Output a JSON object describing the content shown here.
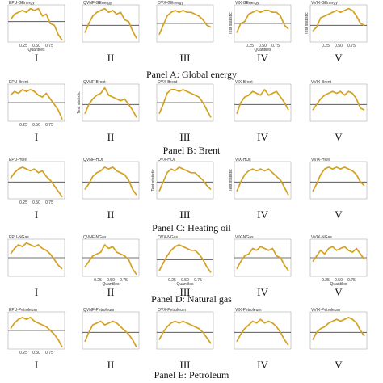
{
  "figure": {
    "curve_color": "#d4a020",
    "threshold_color": "#444444",
    "columns": [
      "I",
      "II",
      "III",
      "IV",
      "V"
    ]
  },
  "chart_data": [
    {
      "type": "line",
      "panel_caption": "Panel A: Global energy",
      "subplots": [
        {
          "title": "EPU-GEnergy",
          "x_ticks": [
            "0.25",
            "0.50",
            "0.75"
          ],
          "xlabel": "Quantiles",
          "ylabel": "",
          "threshold": 0.55,
          "y": [
            0.6,
            0.75,
            0.8,
            0.85,
            0.8,
            0.9,
            0.85,
            0.9,
            0.7,
            0.75,
            0.5,
            0.45,
            0.2,
            0.05
          ]
        },
        {
          "title": "QVNF-GEnergy",
          "x_ticks": [],
          "xlabel": "",
          "ylabel": "",
          "threshold": 0.45,
          "y": [
            0.25,
            0.5,
            0.7,
            0.8,
            0.85,
            0.9,
            0.8,
            0.85,
            0.75,
            0.8,
            0.6,
            0.55,
            0.3,
            0.1
          ]
        },
        {
          "title": "OVX-GEnergy",
          "x_ticks": [],
          "xlabel": "",
          "ylabel": "",
          "threshold": 0.5,
          "y": [
            0.2,
            0.45,
            0.7,
            0.8,
            0.85,
            0.8,
            0.85,
            0.8,
            0.8,
            0.75,
            0.7,
            0.6,
            0.45,
            0.4
          ]
        },
        {
          "title": "VIX-GEnergy",
          "x_ticks": [
            "0.25",
            "0.50",
            "0.75"
          ],
          "xlabel": "Quantiles",
          "ylabel": "Test statistic",
          "threshold": 0.5,
          "y": [
            0.25,
            0.5,
            0.55,
            0.75,
            0.8,
            0.85,
            0.8,
            0.85,
            0.85,
            0.8,
            0.8,
            0.7,
            0.45,
            0.35
          ]
        },
        {
          "title": "VVIX-GEnergy",
          "x_ticks": [
            "0.25",
            "0.50",
            "0.75"
          ],
          "xlabel": "",
          "ylabel": "Test statistic",
          "threshold": 0.45,
          "y": [
            0.3,
            0.4,
            0.65,
            0.7,
            0.75,
            0.8,
            0.85,
            0.8,
            0.85,
            0.9,
            0.85,
            0.7,
            0.5,
            0.45
          ]
        }
      ]
    },
    {
      "type": "line",
      "panel_caption": "Panel B: Brent",
      "subplots": [
        {
          "title": "EPU-Brent",
          "x_ticks": [
            "0.25",
            "0.50",
            "0.75"
          ],
          "xlabel": "",
          "ylabel": "",
          "threshold": 0.5,
          "y": [
            0.7,
            0.8,
            0.75,
            0.85,
            0.8,
            0.85,
            0.8,
            0.7,
            0.65,
            0.75,
            0.6,
            0.45,
            0.3,
            0.05
          ]
        },
        {
          "title": "QVNF-Brent",
          "x_ticks": [],
          "xlabel": "",
          "ylabel": "Test statistic",
          "threshold": 0.45,
          "y": [
            0.2,
            0.45,
            0.6,
            0.7,
            0.75,
            0.9,
            0.7,
            0.65,
            0.6,
            0.55,
            0.6,
            0.45,
            0.3,
            0.1
          ]
        },
        {
          "title": "OVX-Brent",
          "x_ticks": [],
          "xlabel": "",
          "ylabel": "",
          "threshold": 0.5,
          "y": [
            0.2,
            0.45,
            0.75,
            0.85,
            0.85,
            0.8,
            0.85,
            0.8,
            0.75,
            0.7,
            0.65,
            0.5,
            0.3,
            0.1
          ]
        },
        {
          "title": "VIX-Brent",
          "x_ticks": [],
          "xlabel": "",
          "ylabel": "",
          "threshold": 0.45,
          "y": [
            0.2,
            0.5,
            0.65,
            0.7,
            0.8,
            0.75,
            0.7,
            0.85,
            0.7,
            0.75,
            0.8,
            0.65,
            0.5,
            0.3
          ]
        },
        {
          "title": "VVIX-Brent",
          "x_ticks": [],
          "xlabel": "",
          "ylabel": "",
          "threshold": 0.45,
          "y": [
            0.3,
            0.45,
            0.6,
            0.7,
            0.75,
            0.8,
            0.75,
            0.8,
            0.7,
            0.8,
            0.75,
            0.6,
            0.35,
            0.3
          ]
        }
      ]
    },
    {
      "type": "line",
      "panel_caption": "Panel C: Heating oil",
      "subplots": [
        {
          "title": "EPU-HOil",
          "x_ticks": [
            "0.25",
            "0.50",
            "0.75"
          ],
          "xlabel": "",
          "ylabel": "",
          "threshold": 0.45,
          "y": [
            0.55,
            0.7,
            0.8,
            0.85,
            0.8,
            0.75,
            0.8,
            0.7,
            0.75,
            0.6,
            0.5,
            0.35,
            0.2,
            0.05
          ]
        },
        {
          "title": "QVNF-HOil",
          "x_ticks": [],
          "xlabel": "",
          "ylabel": "",
          "threshold": 0.45,
          "y": [
            0.25,
            0.4,
            0.6,
            0.7,
            0.75,
            0.85,
            0.8,
            0.85,
            0.75,
            0.7,
            0.65,
            0.5,
            0.25,
            0.1
          ]
        },
        {
          "title": "OVX-HOil",
          "x_ticks": [],
          "xlabel": "",
          "ylabel": "Test statistic",
          "threshold": 0.45,
          "y": [
            0.2,
            0.45,
            0.7,
            0.8,
            0.75,
            0.85,
            0.8,
            0.75,
            0.7,
            0.7,
            0.6,
            0.5,
            0.35,
            0.25
          ]
        },
        {
          "title": "VIX-HOil",
          "x_ticks": [],
          "xlabel": "",
          "ylabel": "Test statistic",
          "threshold": 0.45,
          "y": [
            0.2,
            0.45,
            0.65,
            0.75,
            0.8,
            0.75,
            0.8,
            0.75,
            0.8,
            0.7,
            0.6,
            0.5,
            0.3,
            0.1
          ]
        },
        {
          "title": "VVIX-HOil",
          "x_ticks": [],
          "xlabel": "",
          "ylabel": "",
          "threshold": 0.45,
          "y": [
            0.2,
            0.4,
            0.65,
            0.8,
            0.85,
            0.8,
            0.85,
            0.8,
            0.85,
            0.8,
            0.75,
            0.65,
            0.45,
            0.35
          ]
        }
      ]
    },
    {
      "type": "line",
      "panel_caption": "Panel D: Natural gas",
      "subplots": [
        {
          "title": "EPU-NGas",
          "x_ticks": [],
          "xlabel": "",
          "ylabel": "",
          "threshold": 0.5,
          "y": [
            0.6,
            0.75,
            0.85,
            0.8,
            0.9,
            0.85,
            0.8,
            0.85,
            0.75,
            0.7,
            0.6,
            0.45,
            0.3,
            0.2
          ]
        },
        {
          "title": "QVNF-NGas",
          "x_ticks": [
            "0.25",
            "0.50",
            "0.75"
          ],
          "xlabel": "Quantiles",
          "ylabel": "",
          "threshold": 0.5,
          "y": [
            0.25,
            0.4,
            0.55,
            0.6,
            0.65,
            0.85,
            0.75,
            0.8,
            0.65,
            0.6,
            0.55,
            0.45,
            0.2,
            0.05
          ]
        },
        {
          "title": "OVX-NGas",
          "x_ticks": [
            "0.25",
            "0.50",
            "0.75"
          ],
          "xlabel": "Quantiles",
          "ylabel": "",
          "threshold": 0.45,
          "y": [
            0.15,
            0.35,
            0.55,
            0.7,
            0.8,
            0.85,
            0.8,
            0.75,
            0.7,
            0.7,
            0.6,
            0.45,
            0.25,
            0.1
          ]
        },
        {
          "title": "VIX-NGas",
          "x_ticks": [],
          "xlabel": "",
          "ylabel": "",
          "threshold": 0.5,
          "y": [
            0.2,
            0.4,
            0.55,
            0.6,
            0.75,
            0.7,
            0.8,
            0.75,
            0.7,
            0.75,
            0.55,
            0.5,
            0.3,
            0.15
          ]
        },
        {
          "title": "VVIX-NGas",
          "x_ticks": [
            "0.25",
            "0.50",
            "0.75"
          ],
          "xlabel": "Quantiles",
          "ylabel": "",
          "threshold": 0.5,
          "y": [
            0.4,
            0.55,
            0.7,
            0.6,
            0.75,
            0.8,
            0.7,
            0.75,
            0.8,
            0.7,
            0.65,
            0.75,
            0.6,
            0.45
          ]
        }
      ]
    },
    {
      "type": "line",
      "panel_caption": "Panel E: Petroleum",
      "subplots": [
        {
          "title": "EPU-Petroleum",
          "x_ticks": [
            "0.25",
            "0.50",
            "0.75"
          ],
          "xlabel": "",
          "ylabel": "",
          "threshold": 0.5,
          "y": [
            0.55,
            0.7,
            0.8,
            0.85,
            0.8,
            0.85,
            0.75,
            0.7,
            0.65,
            0.6,
            0.5,
            0.4,
            0.25,
            0.05
          ]
        },
        {
          "title": "QVNF-Petroleum",
          "x_ticks": [],
          "xlabel": "",
          "ylabel": "",
          "threshold": 0.45,
          "y": [
            0.2,
            0.45,
            0.65,
            0.7,
            0.75,
            0.65,
            0.7,
            0.75,
            0.7,
            0.6,
            0.5,
            0.4,
            0.25,
            0.05
          ]
        },
        {
          "title": "OVX-Petroleum",
          "x_ticks": [],
          "xlabel": "",
          "ylabel": "",
          "threshold": 0.45,
          "y": [
            0.25,
            0.45,
            0.6,
            0.7,
            0.75,
            0.7,
            0.75,
            0.7,
            0.65,
            0.6,
            0.55,
            0.45,
            0.3,
            0.15
          ]
        },
        {
          "title": "VIX-Petroleum",
          "x_ticks": [],
          "xlabel": "",
          "ylabel": "",
          "threshold": 0.45,
          "y": [
            0.2,
            0.4,
            0.55,
            0.65,
            0.75,
            0.7,
            0.8,
            0.7,
            0.75,
            0.7,
            0.6,
            0.45,
            0.25,
            0.1
          ]
        },
        {
          "title": "VVIX-Petroleum",
          "x_ticks": [],
          "xlabel": "",
          "ylabel": "",
          "threshold": 0.45,
          "y": [
            0.25,
            0.45,
            0.55,
            0.6,
            0.7,
            0.75,
            0.8,
            0.75,
            0.8,
            0.85,
            0.8,
            0.7,
            0.5,
            0.35
          ]
        }
      ]
    }
  ]
}
